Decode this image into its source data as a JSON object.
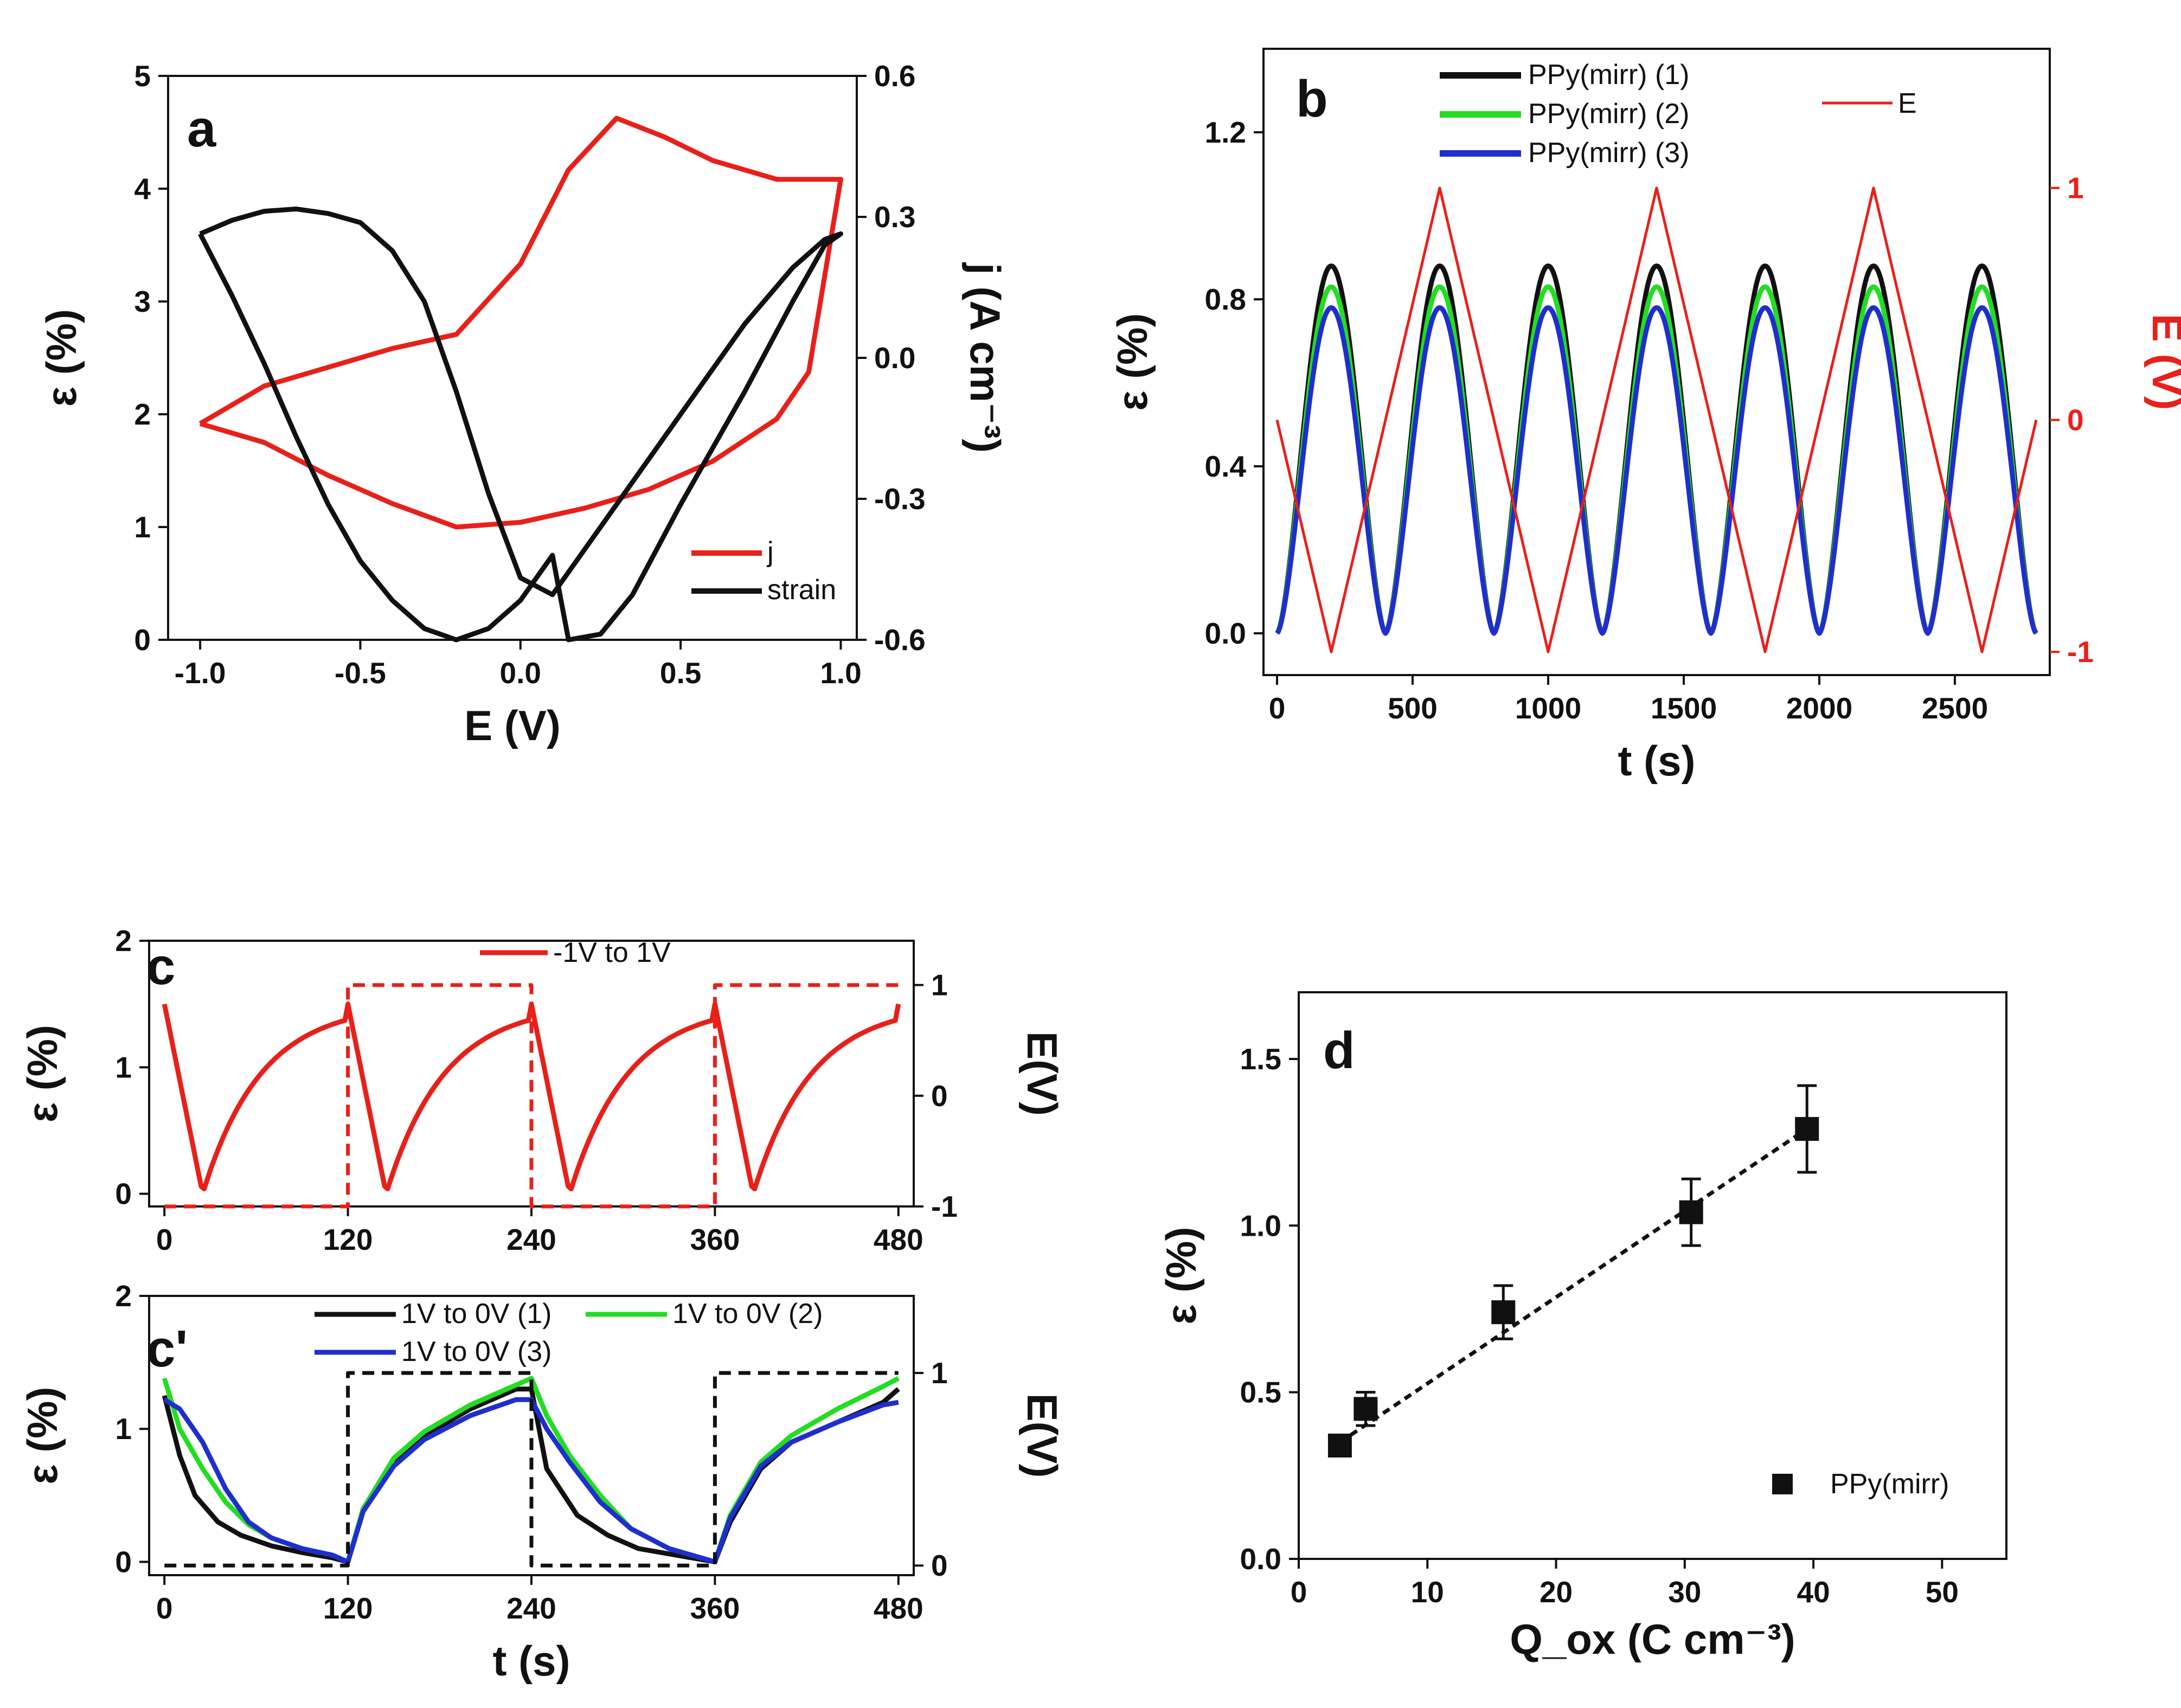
{
  "colors": {
    "black": "#111111",
    "green": "#22dd22",
    "blue": "#1f2ecc",
    "red": "#e8201a"
  },
  "chart_data": [
    {
      "id": "a",
      "type": "line",
      "panel_label": "a",
      "xlabel": "E (V)",
      "ylabel": "ε (%)",
      "y2label": "j (A cm⁻³)",
      "xlim": [
        -1.1,
        1.05
      ],
      "ylim": [
        0,
        5
      ],
      "y2lim": [
        -0.6,
        0.6
      ],
      "xticks": [
        "-1.0",
        "-0.5",
        "0.0",
        "0.5",
        "1.0"
      ],
      "yticks": [
        "0",
        "1",
        "2",
        "3",
        "4",
        "5"
      ],
      "y2ticks": [
        "-0.6",
        "-0.3",
        "0.0",
        "0.3",
        "0.6"
      ],
      "legend": [
        "j",
        "strain"
      ],
      "series": [
        {
          "name": "j",
          "axis": "y2",
          "color": "#e8201a",
          "x": [
            -1.0,
            -0.8,
            -0.6,
            -0.4,
            -0.2,
            0.0,
            0.2,
            0.4,
            0.6,
            0.8,
            0.9,
            1.0,
            0.9,
            0.8,
            0.6,
            0.45,
            0.3,
            0.15,
            0.0,
            -0.2,
            -0.4,
            -0.6,
            -0.8,
            -1.0
          ],
          "y": [
            -0.14,
            -0.18,
            -0.25,
            -0.31,
            -0.36,
            -0.35,
            -0.32,
            -0.28,
            -0.22,
            -0.13,
            -0.03,
            0.38,
            0.38,
            0.38,
            0.42,
            0.47,
            0.51,
            0.4,
            0.2,
            0.05,
            0.02,
            -0.02,
            -0.06,
            -0.14
          ]
        },
        {
          "name": "strain",
          "axis": "y",
          "color": "#111111",
          "x": [
            -1.0,
            -0.9,
            -0.8,
            -0.7,
            -0.6,
            -0.5,
            -0.4,
            -0.3,
            -0.2,
            -0.1,
            0.0,
            0.1,
            0.15,
            0.25,
            0.35,
            0.5,
            0.7,
            0.85,
            0.95,
            1.0,
            0.95,
            0.85,
            0.7,
            0.5,
            0.3,
            0.1,
            0.0,
            -0.1,
            -0.2,
            -0.3,
            -0.4,
            -0.5,
            -0.6,
            -0.7,
            -0.8,
            -0.9,
            -1.0
          ],
          "y": [
            3.6,
            3.05,
            2.45,
            1.8,
            1.2,
            0.7,
            0.35,
            0.1,
            0.0,
            0.1,
            0.35,
            0.75,
            0.0,
            0.05,
            0.4,
            1.2,
            2.2,
            3.0,
            3.5,
            3.6,
            3.55,
            3.3,
            2.8,
            2.0,
            1.2,
            0.4,
            0.55,
            1.3,
            2.2,
            3.0,
            3.45,
            3.7,
            3.78,
            3.82,
            3.8,
            3.72,
            3.6
          ]
        }
      ]
    },
    {
      "id": "b",
      "type": "line",
      "panel_label": "b",
      "xlabel": "t (s)",
      "ylabel": "ε (%)",
      "y2label": "E (V)",
      "xlim": [
        -50,
        2850
      ],
      "ylim": [
        -0.1,
        1.4
      ],
      "y2lim": [
        -1.1,
        1.6
      ],
      "xticks": [
        "0",
        "500",
        "1000",
        "1500",
        "2000",
        "2500"
      ],
      "yticks": [
        "0.0",
        "0.4",
        "0.8",
        "1.2"
      ],
      "y2ticks": [
        "-1",
        "0",
        "1"
      ],
      "legend": [
        "PPy(mirr) (1)",
        "PPy(mirr) (2)",
        "PPy(mirr) (3)",
        "E"
      ],
      "series": [
        {
          "name": "PPy(mirr) (1)",
          "axis": "y",
          "color": "#111111",
          "shape": "strain-cycles",
          "period": 400,
          "t_max": 2800,
          "peak": 0.88
        },
        {
          "name": "PPy(mirr) (2)",
          "axis": "y",
          "color": "#22dd22",
          "shape": "strain-cycles",
          "period": 400,
          "t_max": 2800,
          "peak": 0.83
        },
        {
          "name": "PPy(mirr) (3)",
          "axis": "y",
          "color": "#1f2ecc",
          "shape": "strain-cycles",
          "period": 400,
          "t_max": 2800,
          "peak": 0.78
        },
        {
          "name": "E",
          "axis": "y2",
          "color": "#e8201a",
          "x": [
            0,
            200,
            600,
            1000,
            1400,
            1800,
            2200,
            2600,
            2800
          ],
          "y": [
            0,
            -1,
            1,
            -1,
            1,
            -1,
            1,
            -1,
            0
          ]
        }
      ]
    },
    {
      "id": "c",
      "type": "line",
      "panel_label": "c",
      "xlabel": "",
      "ylabel": "ε (%)",
      "y2label": "E(V)",
      "xlim": [
        -10,
        490
      ],
      "ylim": [
        -0.1,
        2
      ],
      "y2lim": [
        -1,
        1.4
      ],
      "xticks": [
        "0",
        "120",
        "240",
        "360",
        "480"
      ],
      "yticks": [
        "0",
        "1",
        "2"
      ],
      "y2ticks": [
        "-1",
        "0",
        "1"
      ],
      "legend": [
        "-1V to 1V"
      ],
      "series": [
        {
          "name": "-1V to 1V",
          "axis": "y",
          "color": "#e8201a",
          "shape": "step-response",
          "period": 120,
          "t_max": 480,
          "peak": 1.5
        },
        {
          "name": "E step",
          "axis": "y2",
          "color": "#e8201a",
          "dashed": true,
          "x": [
            0,
            120,
            120,
            240,
            240,
            360,
            360,
            480
          ],
          "y": [
            -1,
            -1,
            1,
            1,
            -1,
            -1,
            1,
            1
          ]
        }
      ]
    },
    {
      "id": "c2",
      "type": "line",
      "panel_label": "c'",
      "xlabel": "t (s)",
      "ylabel": "ε (%)",
      "y2label": "E(V)",
      "xlim": [
        -10,
        490
      ],
      "ylim": [
        -0.1,
        2
      ],
      "y2lim": [
        -0.05,
        1.4
      ],
      "xticks": [
        "0",
        "120",
        "240",
        "360",
        "480"
      ],
      "yticks": [
        "0",
        "1",
        "2"
      ],
      "y2ticks": [
        "0",
        "1"
      ],
      "legend": [
        "1V to 0V (1)",
        "1V to 0V (2)",
        "1V to 0V (3)"
      ],
      "series": [
        {
          "name": "1V to 0V (1)",
          "axis": "y",
          "color": "#111111",
          "x": [
            0,
            10,
            20,
            35,
            50,
            70,
            90,
            110,
            120,
            130,
            150,
            170,
            200,
            230,
            240,
            250,
            270,
            290,
            310,
            340,
            360,
            370,
            390,
            410,
            440,
            470,
            480
          ],
          "y": [
            1.25,
            0.8,
            0.5,
            0.3,
            0.2,
            0.12,
            0.07,
            0.03,
            0.0,
            0.4,
            0.75,
            0.95,
            1.15,
            1.3,
            1.3,
            0.7,
            0.35,
            0.2,
            0.1,
            0.04,
            0.0,
            0.3,
            0.7,
            0.9,
            1.05,
            1.2,
            1.3
          ]
        },
        {
          "name": "1V to 0V (2)",
          "axis": "y",
          "color": "#22dd22",
          "x": [
            0,
            10,
            25,
            40,
            55,
            70,
            90,
            110,
            120,
            130,
            150,
            170,
            200,
            230,
            240,
            250,
            265,
            285,
            305,
            330,
            360,
            370,
            390,
            410,
            440,
            470,
            480
          ],
          "y": [
            1.38,
            1.0,
            0.7,
            0.45,
            0.28,
            0.18,
            0.1,
            0.05,
            0.0,
            0.4,
            0.78,
            0.98,
            1.18,
            1.33,
            1.38,
            1.1,
            0.8,
            0.5,
            0.25,
            0.1,
            0.0,
            0.35,
            0.75,
            0.95,
            1.15,
            1.32,
            1.38
          ]
        },
        {
          "name": "1V to 0V (3)",
          "axis": "y",
          "color": "#1f2ecc",
          "x": [
            0,
            10,
            25,
            40,
            55,
            70,
            90,
            110,
            120,
            130,
            150,
            170,
            200,
            230,
            240,
            250,
            265,
            285,
            305,
            330,
            360,
            370,
            390,
            410,
            440,
            470,
            480
          ],
          "y": [
            1.22,
            1.15,
            0.9,
            0.55,
            0.3,
            0.18,
            0.1,
            0.05,
            0.0,
            0.38,
            0.72,
            0.92,
            1.1,
            1.22,
            1.22,
            1.0,
            0.75,
            0.45,
            0.25,
            0.1,
            0.0,
            0.33,
            0.72,
            0.9,
            1.05,
            1.18,
            1.2
          ]
        },
        {
          "name": "E step",
          "axis": "y2",
          "color": "#111111",
          "dashed": true,
          "x": [
            0,
            120,
            120,
            240,
            240,
            360,
            360,
            480
          ],
          "y": [
            0,
            0,
            1,
            1,
            0,
            0,
            1,
            1
          ]
        }
      ]
    },
    {
      "id": "d",
      "type": "scatter",
      "panel_label": "d",
      "xlabel": "Q_ox (C cm⁻³)",
      "ylabel": "ε (%)",
      "xlim": [
        0,
        55
      ],
      "ylim": [
        0,
        1.7
      ],
      "xticks": [
        "0",
        "10",
        "20",
        "30",
        "40",
        "50"
      ],
      "yticks": [
        "0.0",
        "0.5",
        "1.0",
        "1.5"
      ],
      "legend": [
        "PPy(mirr)"
      ],
      "series": [
        {
          "name": "PPy(mirr)",
          "color": "#111111",
          "x": [
            3.2,
            5.2,
            15.9,
            30.5,
            39.5
          ],
          "y": [
            0.34,
            0.45,
            0.74,
            1.04,
            1.29
          ],
          "err": [
            0.03,
            0.05,
            0.08,
            0.1,
            0.13
          ]
        },
        {
          "name": "fit",
          "color": "#111111",
          "dashed": true,
          "x": [
            3.2,
            39.5
          ],
          "y": [
            0.35,
            1.29
          ]
        }
      ]
    }
  ]
}
